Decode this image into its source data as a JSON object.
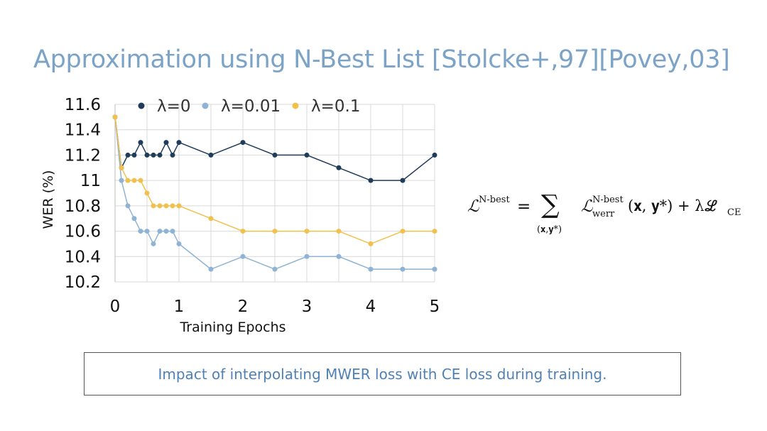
{
  "slide": {
    "title": "Approximation using N-Best List [Stolcke+,97][Povey,03]",
    "caption": "Impact of interpolating MWER loss with CE loss during training."
  },
  "formula": {
    "lhs": "ℒ",
    "lhs_sup": "N-best",
    "equals": "=",
    "sum": "∑",
    "sum_sub": "(𝐱,𝐲*)",
    "term": "ℒ",
    "term_sup": "N-best",
    "term_sub": "werr",
    "args": "(𝐱, 𝐲*) + λℒ",
    "ce_sub": "CE"
  },
  "colors": {
    "title": "#7ba3c8",
    "caption": "#4f81b5",
    "grid": "#d9d9d9"
  },
  "chart_data": {
    "type": "line",
    "xlabel": "Training Epochs",
    "ylabel": "WER (%)",
    "xlim": [
      0,
      5
    ],
    "ylim": [
      10.2,
      11.6
    ],
    "xticks": [
      0,
      1,
      2,
      3,
      4,
      5
    ],
    "yticks": [
      10.2,
      10.4,
      10.6,
      10.8,
      11,
      11.2,
      11.4,
      11.6
    ],
    "ytick_labels": [
      "10.2",
      "10.4",
      "10.6",
      "10.8",
      "11",
      "11.2",
      "11.4",
      "11.6"
    ],
    "grid": true,
    "legend_position": "top",
    "series": [
      {
        "name": "λ=0",
        "color": "#1f3c5a",
        "x": [
          0,
          0.1,
          0.2,
          0.3,
          0.4,
          0.5,
          0.6,
          0.7,
          0.8,
          0.9,
          1,
          1.5,
          2,
          2.5,
          3,
          3.5,
          4,
          4.5,
          5
        ],
        "y": [
          11.5,
          11.1,
          11.2,
          11.2,
          11.3,
          11.2,
          11.2,
          11.2,
          11.3,
          11.2,
          11.3,
          11.2,
          11.3,
          11.2,
          11.2,
          11.1,
          11.0,
          11.0,
          11.2
        ]
      },
      {
        "name": "λ=0.01",
        "color": "#8fb3d4",
        "x": [
          0,
          0.1,
          0.2,
          0.3,
          0.4,
          0.5,
          0.6,
          0.7,
          0.8,
          0.9,
          1,
          1.5,
          2,
          2.5,
          3,
          3.5,
          4,
          4.5,
          5
        ],
        "y": [
          11.5,
          11.0,
          10.8,
          10.7,
          10.6,
          10.6,
          10.5,
          10.6,
          10.6,
          10.6,
          10.5,
          10.3,
          10.4,
          10.3,
          10.4,
          10.4,
          10.3,
          10.3,
          10.3
        ]
      },
      {
        "name": "λ=0.1",
        "color": "#f2c04d",
        "x": [
          0,
          0.1,
          0.2,
          0.3,
          0.4,
          0.5,
          0.6,
          0.7,
          0.8,
          0.9,
          1,
          1.5,
          2,
          2.5,
          3,
          3.5,
          4,
          4.5,
          5
        ],
        "y": [
          11.5,
          11.1,
          11.0,
          11.0,
          11.0,
          10.9,
          10.8,
          10.8,
          10.8,
          10.8,
          10.8,
          10.7,
          10.6,
          10.6,
          10.6,
          10.6,
          10.5,
          10.6,
          10.6
        ]
      }
    ]
  }
}
